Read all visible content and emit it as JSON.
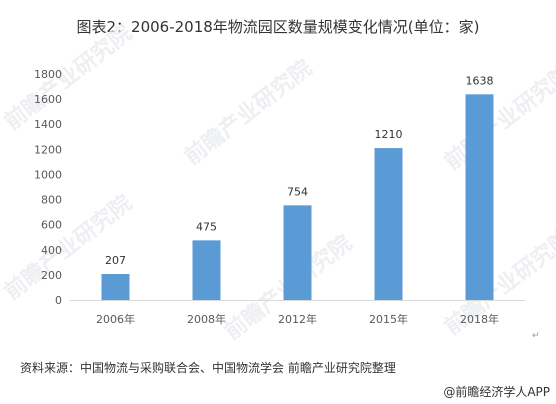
{
  "title": "图表2：2006-2018年物流园区数量规模变化情况(单位：家)",
  "source": "资料来源：中国物流与采购联合会、中国物流学会 前瞻产业研究院整理",
  "credit": "@前瞻经济学人APP",
  "watermark": "前瞻产业研究院",
  "colors": {
    "bar": "#5b9bd5",
    "axis": "#d9d9d9",
    "text": "#595959"
  },
  "chart_data": {
    "type": "bar",
    "title": "图表2：2006-2018年物流园区数量规模变化情况(单位：家)",
    "categories": [
      "2006年",
      "2008年",
      "2012年",
      "2015年",
      "2018年"
    ],
    "values": [
      207,
      475,
      754,
      1210,
      1638
    ],
    "ylim": [
      0,
      1800
    ],
    "yticks": [
      0,
      200,
      400,
      600,
      800,
      1000,
      1200,
      1400,
      1600,
      1800
    ],
    "grid": false,
    "legend": "none"
  }
}
